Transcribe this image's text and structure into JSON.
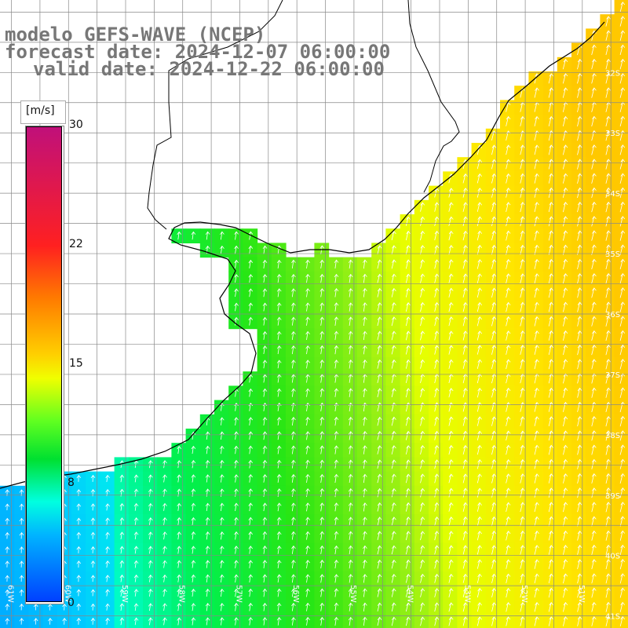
{
  "title": {
    "model": "modelo GEFS-WAVE (NCEP)",
    "forecast": "forecast date: 2024-12-07 06:00:00",
    "valid": "valid date: 2024-12-22 06:00:00"
  },
  "colorbar": {
    "unit": "[m/s]",
    "ticks": [
      "30",
      "22",
      "15",
      "8",
      "0"
    ],
    "tick_values": [
      30,
      22,
      15,
      8,
      0
    ],
    "range": [
      0,
      30
    ]
  },
  "latitude_labels": [
    "32S",
    "33S",
    "34S",
    "35S",
    "36S",
    "37S",
    "38S",
    "39S",
    "40S",
    "41S"
  ],
  "longitude_labels": [
    "61W",
    "60W",
    "59W",
    "58W",
    "57W",
    "56W",
    "55W",
    "54W",
    "53W",
    "52W",
    "51W"
  ],
  "map": {
    "lon_range": [
      -61.2,
      -50.2
    ],
    "lat_range": [
      -41.2,
      -30.8
    ],
    "field": "wind speed",
    "flow_direction": "northward (southerly wind)",
    "speed_pattern": "about 6-8 m/s in the southwest, 10-14 m/s in the center, 16-18 m/s in the east"
  },
  "colors": {
    "land": "#ffffff",
    "grid": "#888888",
    "coast": "#000000",
    "arrows": "#ffffff",
    "title": "#777777"
  }
}
